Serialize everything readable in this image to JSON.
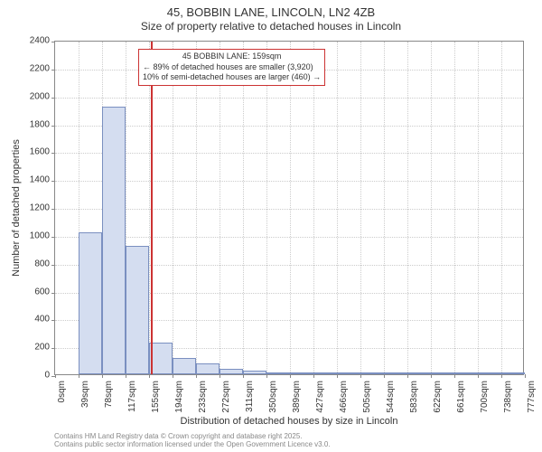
{
  "chart": {
    "type": "histogram",
    "title_main": "45, BOBBIN LANE, LINCOLN, LN2 4ZB",
    "title_sub": "Size of property relative to detached houses in Lincoln",
    "ylabel": "Number of detached properties",
    "xlabel": "Distribution of detached houses by size in Lincoln",
    "ylim": [
      0,
      2400
    ],
    "ytick_step": 200,
    "yticks": [
      0,
      200,
      400,
      600,
      800,
      1000,
      1200,
      1400,
      1600,
      1800,
      2000,
      2200,
      2400
    ],
    "xticks": [
      "0sqm",
      "39sqm",
      "78sqm",
      "117sqm",
      "155sqm",
      "194sqm",
      "233sqm",
      "272sqm",
      "311sqm",
      "350sqm",
      "389sqm",
      "427sqm",
      "466sqm",
      "505sqm",
      "544sqm",
      "583sqm",
      "622sqm",
      "661sqm",
      "700sqm",
      "738sqm",
      "777sqm"
    ],
    "bar_values": [
      0,
      1020,
      1920,
      920,
      230,
      120,
      75,
      40,
      25,
      15,
      10,
      5,
      5,
      3,
      2,
      2,
      2,
      1,
      1,
      1
    ],
    "ref_line_pos": 4.08,
    "bar_fill": "#d4ddf0",
    "bar_border": "#7a8fc0",
    "ref_line_color": "#cc3333",
    "grid_color": "#cccccc",
    "annotation": {
      "line1": "45 BOBBIN LANE: 159sqm",
      "line2": "← 89% of detached houses are smaller (3,920)",
      "line3": "10% of semi-detached houses are larger (460) →"
    },
    "footer_line1": "Contains HM Land Registry data © Crown copyright and database right 2025.",
    "footer_line2": "Contains public sector information licensed under the Open Government Licence v3.0."
  }
}
